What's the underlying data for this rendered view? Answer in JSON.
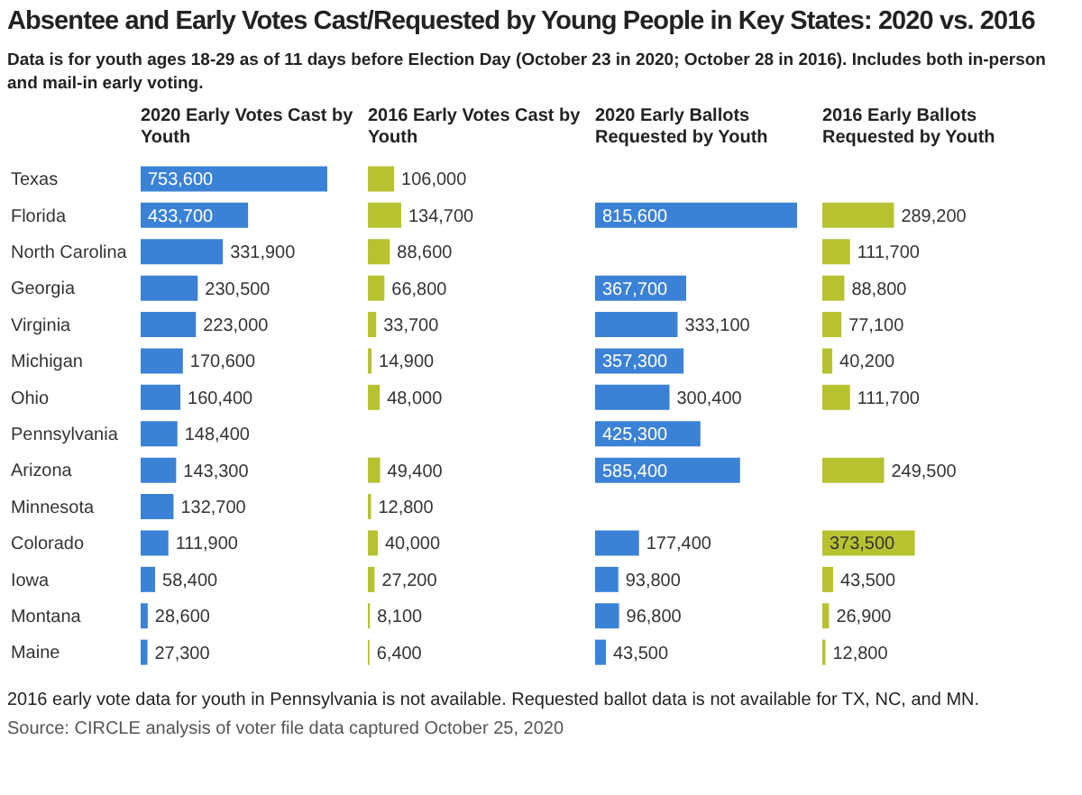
{
  "chart_data": [
    {
      "type": "other",
      "title": "Absentee and Early Votes Cast/Requested by Young People in Key States: 2020 vs. 2016",
      "subtitle": "Data is for youth ages 18-29 as of 11 days before Election Day (October 23 in 2020; October 28 in 2016). Includes both in-person and mail-in early voting.",
      "annotations": [
        "2016 early vote data for youth in Pennsylvania is not available. Requested ballot data is not available for TX, NC, and MN.",
        "Source: CIRCLE analysis of voter file data captured October 25, 2020"
      ]
    },
    {
      "type": "bar",
      "orientation": "horizontal",
      "title": "2020 Early Votes Cast by Youth",
      "categories": [
        "Texas",
        "Florida",
        "North Carolina",
        "Georgia",
        "Virginia",
        "Michigan",
        "Ohio",
        "Pennsylvania",
        "Arizona",
        "Minnesota",
        "Colorado",
        "Iowa",
        "Montana",
        "Maine"
      ],
      "values": [
        753600,
        433700,
        331900,
        230500,
        223000,
        170600,
        160400,
        148400,
        143300,
        132700,
        111900,
        58400,
        28600,
        27300
      ],
      "value_labels": [
        "753,600",
        "433,700",
        "331,900",
        "230,500",
        "223,000",
        "170,600",
        "160,400",
        "148,400",
        "143,300",
        "132,700",
        "111,900",
        "58,400",
        "28,600",
        "27,300"
      ],
      "color": "#3b82d6",
      "tick_labels": "y"
    },
    {
      "type": "bar",
      "orientation": "horizontal",
      "title": "2016 Early Votes Cast by Youth",
      "values": [
        106000,
        134700,
        88600,
        66800,
        33700,
        14900,
        48000,
        null,
        49400,
        12800,
        40000,
        27200,
        8100,
        6400
      ],
      "value_labels": [
        "106,000",
        "134,700",
        "88,600",
        "66,800",
        "33,700",
        "14,900",
        "48,000",
        null,
        "49,400",
        "12,800",
        "40,000",
        "27,200",
        "8,100",
        "6,400"
      ],
      "color": "#b7c230",
      "tick_labels": false
    },
    {
      "type": "bar",
      "orientation": "horizontal",
      "title": "2020 Early Ballots Requested by Youth",
      "values": [
        null,
        815600,
        null,
        367700,
        333100,
        357300,
        300400,
        425300,
        585400,
        null,
        177400,
        93800,
        96800,
        43500
      ],
      "value_labels": [
        null,
        "815,600",
        null,
        "367,700",
        "333,100",
        "357,300",
        "300,400",
        "425,300",
        "585,400",
        null,
        "177,400",
        "93,800",
        "96,800",
        "43,500"
      ],
      "color": "#3b82d6",
      "tick_labels": false
    },
    {
      "type": "bar",
      "orientation": "horizontal",
      "title": "2016 Early Ballots Requested by Youth",
      "values": [
        null,
        289200,
        111700,
        88800,
        77100,
        40200,
        111700,
        null,
        249500,
        null,
        373500,
        43500,
        26900,
        12800
      ],
      "value_labels": [
        null,
        "289,200",
        "111,700",
        "88,800",
        "77,100",
        "40,200",
        "111,700",
        null,
        "249,500",
        null,
        "373,500",
        "43,500",
        "26,900",
        "12,800"
      ],
      "color": "#b7c230",
      "tick_labels": false
    }
  ]
}
